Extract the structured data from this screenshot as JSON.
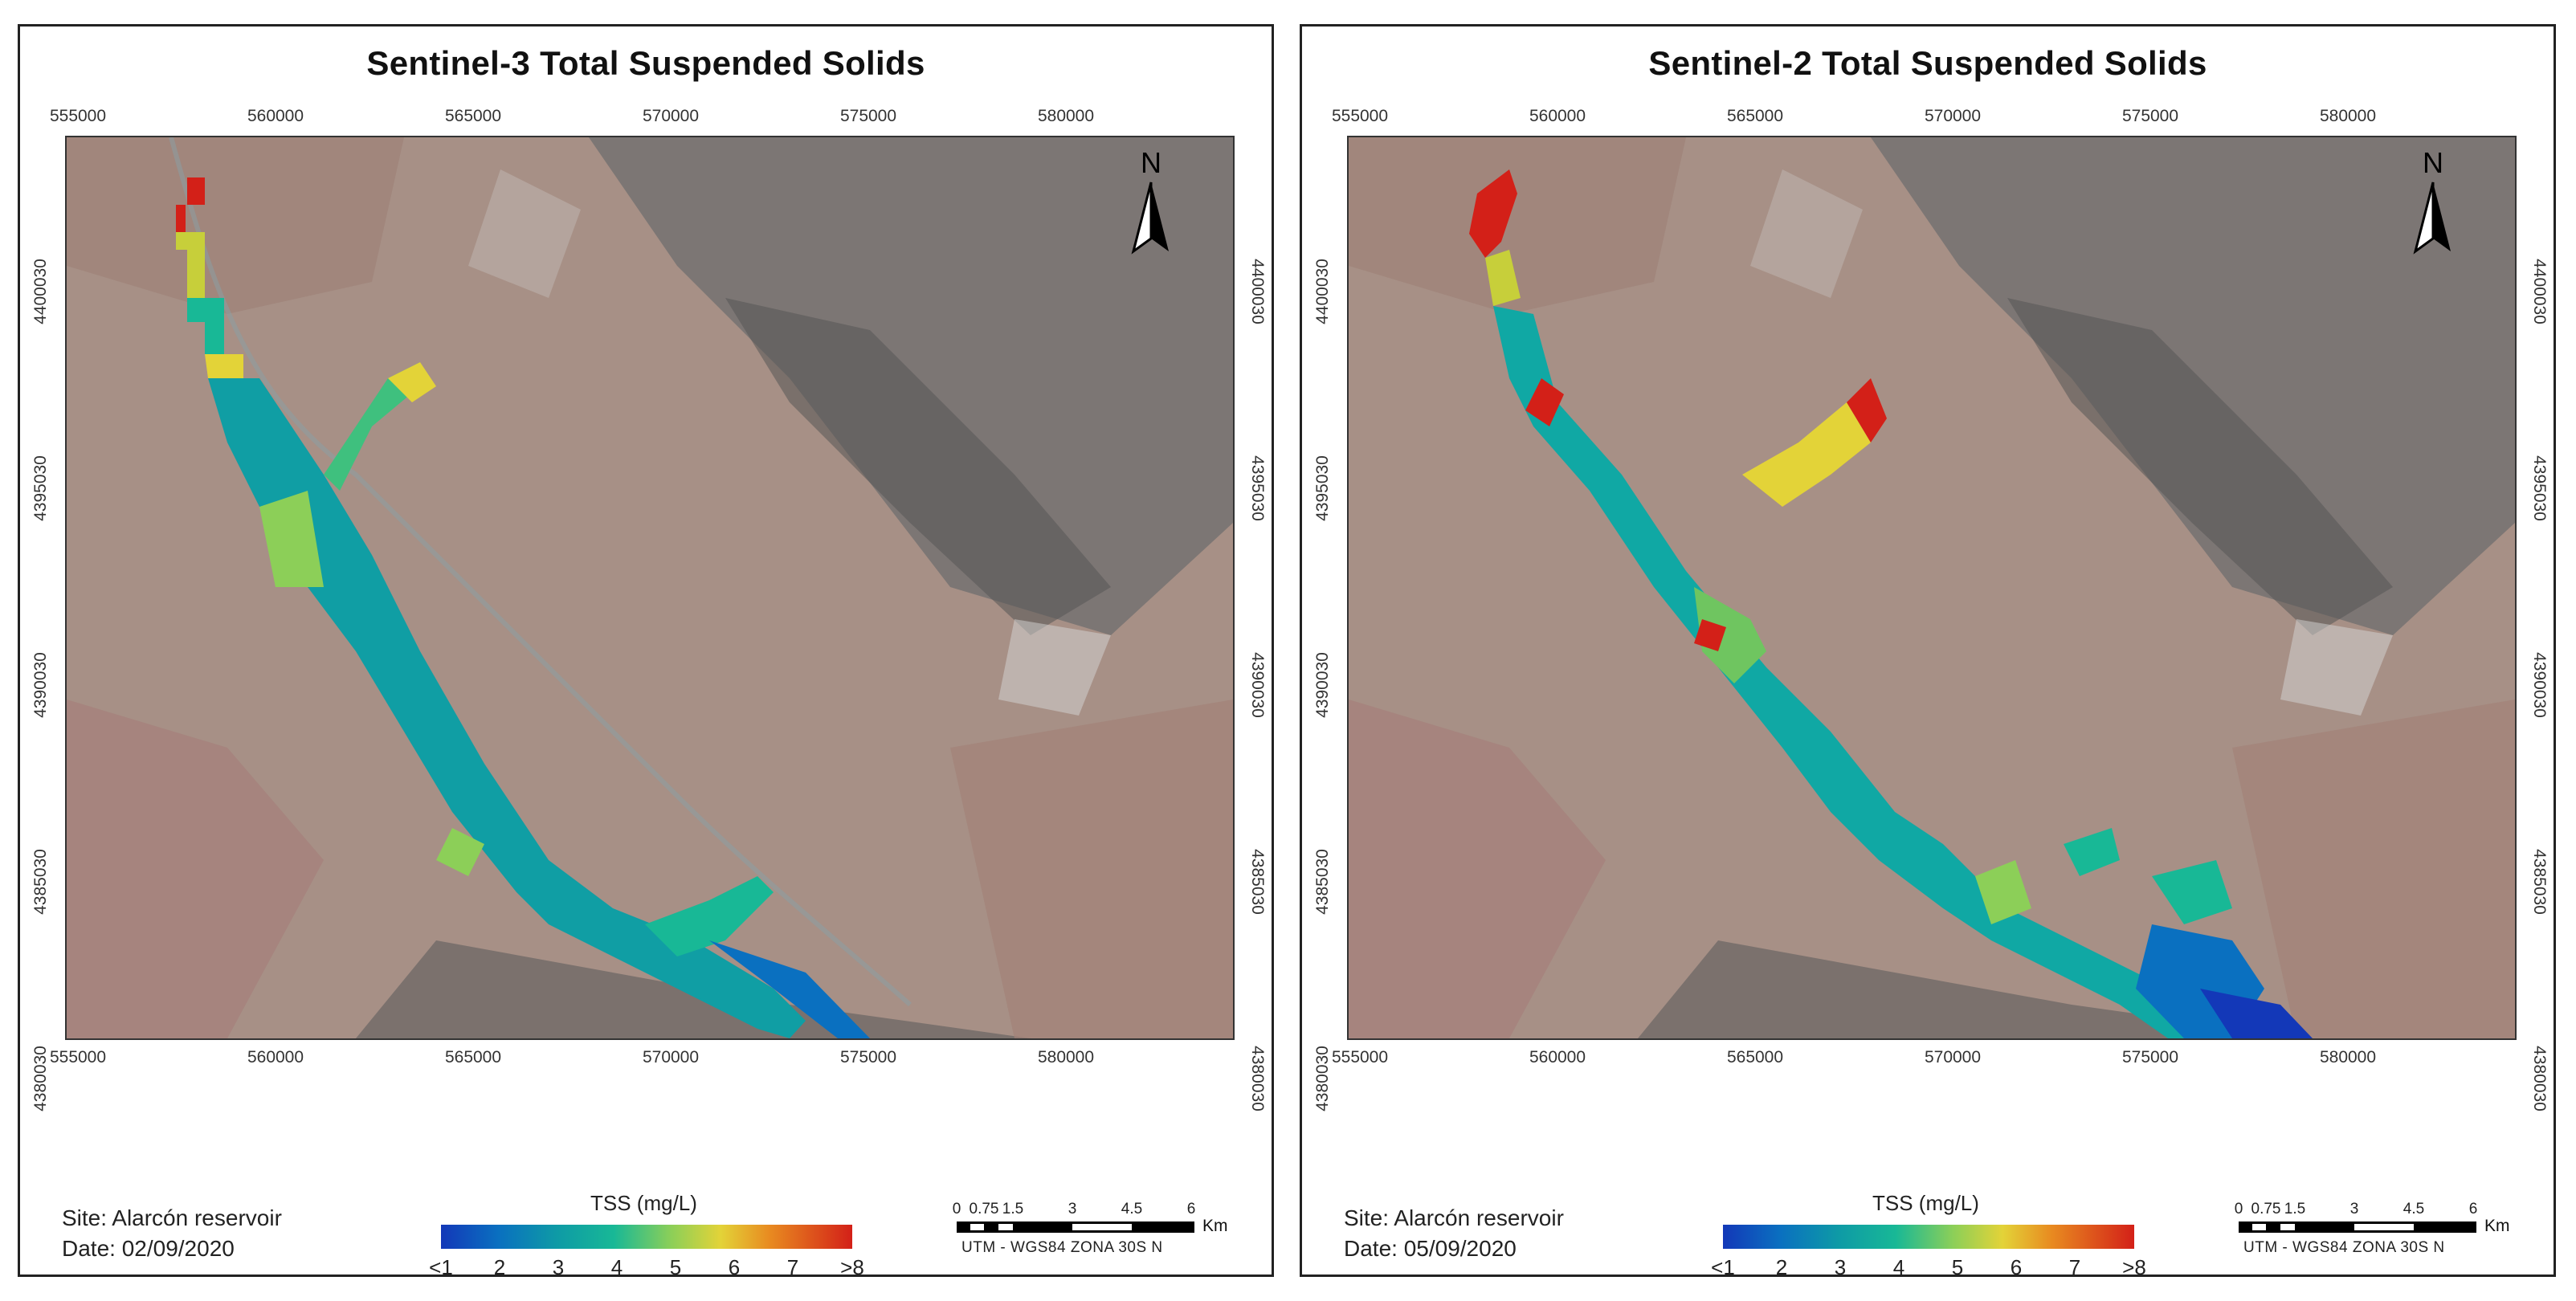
{
  "panels": [
    {
      "title": "Sentinel-3 Total Suspended Solids",
      "site": "Site: Alarcón reservoir",
      "date": "Date: 02/09/2020"
    },
    {
      "title": "Sentinel-2 Total Suspended Solids",
      "site": "Site: Alarcón reservoir",
      "date": "Date: 05/09/2020"
    }
  ],
  "easting_ticks": [
    "555000",
    "560000",
    "565000",
    "570000",
    "575000",
    "580000"
  ],
  "northing_ticks": [
    "4400030",
    "4395030",
    "4390030",
    "4385030",
    "4380030"
  ],
  "legend": {
    "title": "TSS (mg/L)",
    "labels": [
      "<1",
      "2",
      "3",
      "4",
      "5",
      "6",
      "7",
      ">8"
    ],
    "colors": [
      "#1338b8",
      "#0a70c0",
      "#0e9aa6",
      "#18b896",
      "#8ccf58",
      "#e3d338",
      "#e88a20",
      "#d32018"
    ]
  },
  "scalebar": {
    "labels": [
      "0",
      "0.75",
      "1.5",
      "3",
      "4.5",
      "6"
    ],
    "unit": "Km",
    "projection": "UTM - WGS84 ZONA 30S N"
  },
  "north_label": "N"
}
